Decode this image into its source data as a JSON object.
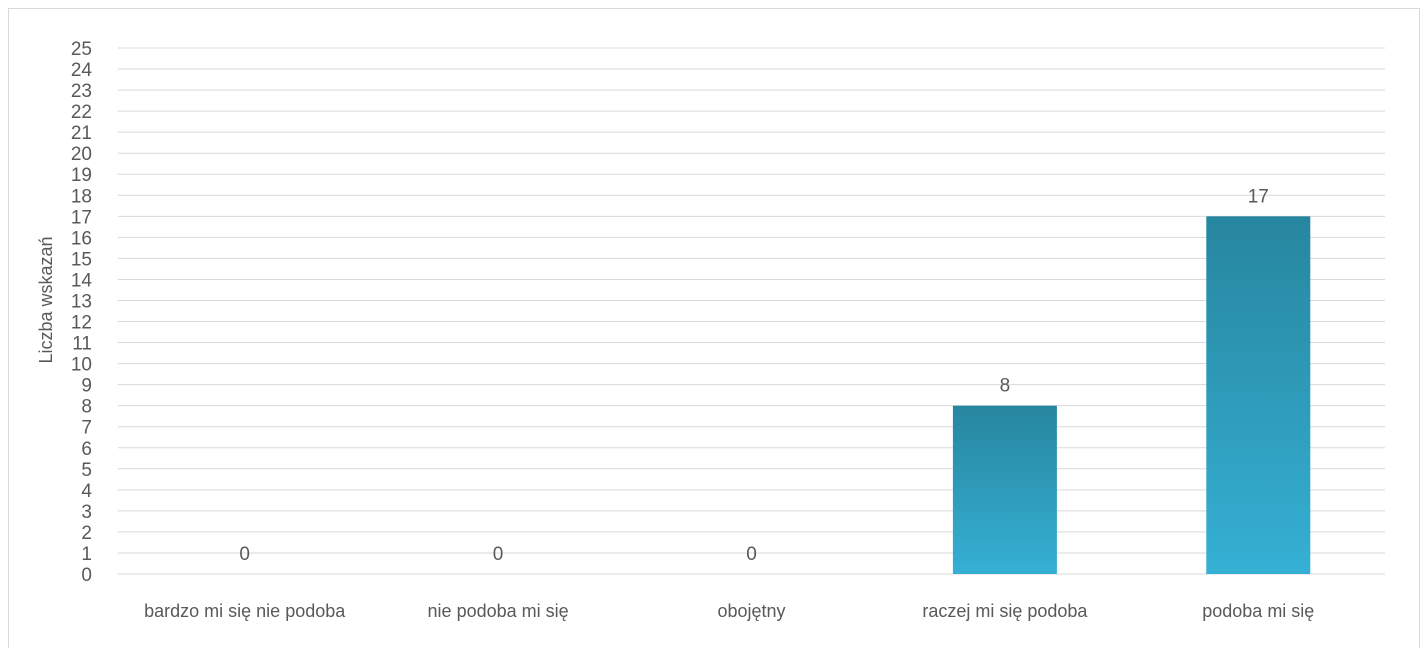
{
  "chart_data": {
    "type": "bar",
    "title": "",
    "xlabel": "",
    "ylabel": "Liczba wskazań",
    "categories": [
      "bardzo mi się nie podoba",
      "nie podoba mi się",
      "obojętny",
      "raczej mi się podoba",
      "podoba mi się"
    ],
    "values": [
      0,
      0,
      0,
      8,
      17
    ],
    "ylim": [
      0,
      25
    ],
    "yticks": [
      0,
      1,
      2,
      3,
      4,
      5,
      6,
      7,
      8,
      9,
      10,
      11,
      12,
      13,
      14,
      15,
      16,
      17,
      18,
      19,
      20,
      21,
      22,
      23,
      24,
      25
    ],
    "grid": true,
    "data_labels": true,
    "colors": {
      "bar_top": "#27869f",
      "bar_bottom": "#35b0d4",
      "text": "#595959",
      "grid": "#d9d9d9"
    }
  }
}
